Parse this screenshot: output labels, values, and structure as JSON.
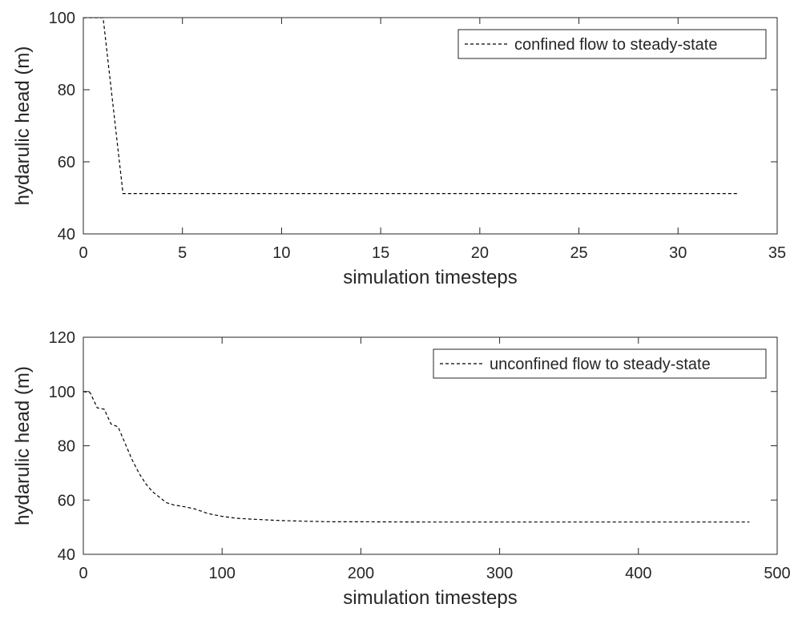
{
  "chart_data": [
    {
      "type": "line",
      "xlabel": "simulation timesteps",
      "ylabel": "hydarulic head (m)",
      "xlim": [
        0,
        35
      ],
      "ylim": [
        40,
        100
      ],
      "xticks": [
        0,
        5,
        10,
        15,
        20,
        25,
        30,
        35
      ],
      "yticks": [
        40,
        60,
        80,
        100
      ],
      "grid": false,
      "legend_position": "top-right",
      "series": [
        {
          "name": "confined flow to steady-state",
          "line_style": "dashed",
          "color": "#000000",
          "x": [
            0,
            1,
            2,
            3,
            4,
            5,
            6,
            7,
            8,
            9,
            10,
            11,
            12,
            13,
            14,
            15,
            16,
            17,
            18,
            19,
            20,
            21,
            22,
            23,
            24,
            25,
            26,
            27,
            28,
            29,
            30,
            31,
            32,
            33
          ],
          "y": [
            100,
            100,
            51.2,
            51.2,
            51.2,
            51.2,
            51.2,
            51.2,
            51.2,
            51.2,
            51.2,
            51.2,
            51.2,
            51.2,
            51.2,
            51.2,
            51.2,
            51.2,
            51.2,
            51.2,
            51.2,
            51.2,
            51.2,
            51.2,
            51.2,
            51.2,
            51.2,
            51.2,
            51.2,
            51.2,
            51.2,
            51.2,
            51.2,
            51.2
          ]
        }
      ]
    },
    {
      "type": "line",
      "xlabel": "simulation timesteps",
      "ylabel": "hydarulic head (m)",
      "xlim": [
        0,
        500
      ],
      "ylim": [
        40,
        120
      ],
      "xticks": [
        0,
        100,
        200,
        300,
        400,
        500
      ],
      "yticks": [
        40,
        60,
        80,
        100,
        120
      ],
      "grid": false,
      "legend_position": "top-right",
      "series": [
        {
          "name": "unconfined flow to steady-state",
          "line_style": "dashed",
          "color": "#000000",
          "x": [
            0,
            5,
            10,
            15,
            20,
            25,
            30,
            35,
            40,
            45,
            50,
            55,
            60,
            65,
            70,
            80,
            90,
            100,
            110,
            120,
            140,
            160,
            180,
            200,
            250,
            300,
            350,
            400,
            450,
            480
          ],
          "y": [
            100,
            99.5,
            94,
            93.5,
            88,
            87,
            81,
            75,
            70,
            66,
            63,
            61,
            59,
            58.2,
            57.8,
            56.8,
            55,
            54,
            53.3,
            53,
            52.5,
            52.2,
            52,
            52,
            51.9,
            51.9,
            51.9,
            51.9,
            51.9,
            51.9
          ]
        }
      ]
    }
  ]
}
